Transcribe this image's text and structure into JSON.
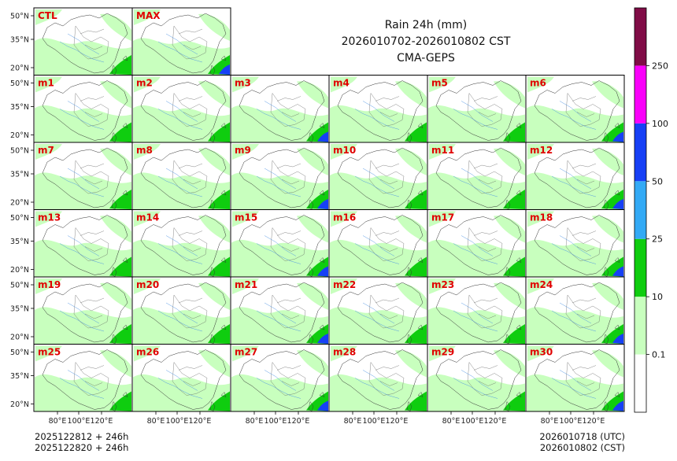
{
  "title": {
    "line1": "Rain 24h (mm)",
    "line2": "2026010702-2026010802 CST",
    "line3": "CMA-GEPS"
  },
  "panel_labels": [
    "CTL",
    "MAX",
    "m1",
    "m2",
    "m3",
    "m4",
    "m5",
    "m6",
    "m7",
    "m8",
    "m9",
    "m10",
    "m11",
    "m12",
    "m13",
    "m14",
    "m15",
    "m16",
    "m17",
    "m18",
    "m19",
    "m20",
    "m21",
    "m22",
    "m23",
    "m24",
    "m25",
    "m26",
    "m27",
    "m28",
    "m29",
    "m30"
  ],
  "axes": {
    "lat_ticks": [
      "50°N",
      "35°N",
      "20°N"
    ],
    "lon_ticks": [
      "80°E",
      "100°E",
      "120°E"
    ]
  },
  "colorbar": {
    "levels": [
      "0.1",
      "10",
      "25",
      "50",
      "100",
      "250"
    ],
    "colors": [
      "#ffffff",
      "#c8ffbe",
      "#0fcd0f",
      "#33aaf5",
      "#1740f5",
      "#fa00fa",
      "#800c46"
    ]
  },
  "footer": {
    "init_utc": "2025122812 + 246h",
    "init_cst": "2025122820 + 246h",
    "valid_utc": "2026010718 (UTC)",
    "valid_cst": "2026010802 (CST)"
  },
  "map_colors": {
    "land_green": "#c8ffbe",
    "rain_green": "#0fcd0f",
    "rain_blue": "#1740f5",
    "rain_lightblue": "#33aaf5",
    "river": "#4a90e2",
    "border": "#333333"
  }
}
